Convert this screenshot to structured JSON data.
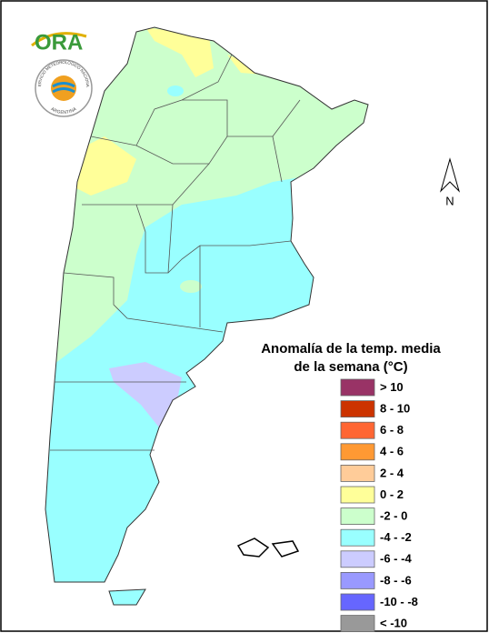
{
  "logo": {
    "text": "ORA"
  },
  "seal": {
    "top_text": "SERVICIO METEOROLOGICO NACIONAL",
    "bottom_text": "ARGENTINA"
  },
  "north_arrow": {
    "label": "N"
  },
  "legend": {
    "title_lines": [
      "Anomalía de la temp. media",
      "de la semana (°C)"
    ],
    "items": [
      {
        "label": "> 10",
        "color": "#993366"
      },
      {
        "label": "8 - 10",
        "color": "#cc3300"
      },
      {
        "label": "6 - 8",
        "color": "#ff6633"
      },
      {
        "label": "4 - 6",
        "color": "#ff9933"
      },
      {
        "label": "2 - 4",
        "color": "#ffcc99"
      },
      {
        "label": "0 - 2",
        "color": "#ffff99"
      },
      {
        "label": "-2 - 0",
        "color": "#ccffcc"
      },
      {
        "label": "-4 - -2",
        "color": "#99ffff"
      },
      {
        "label": "-6 - -4",
        "color": "#ccccff"
      },
      {
        "label": "-8 - -6",
        "color": "#9999ff"
      },
      {
        "label": "-10 - -8",
        "color": "#6666ff"
      },
      {
        "label": "< -10",
        "color": "#999999"
      }
    ]
  }
}
